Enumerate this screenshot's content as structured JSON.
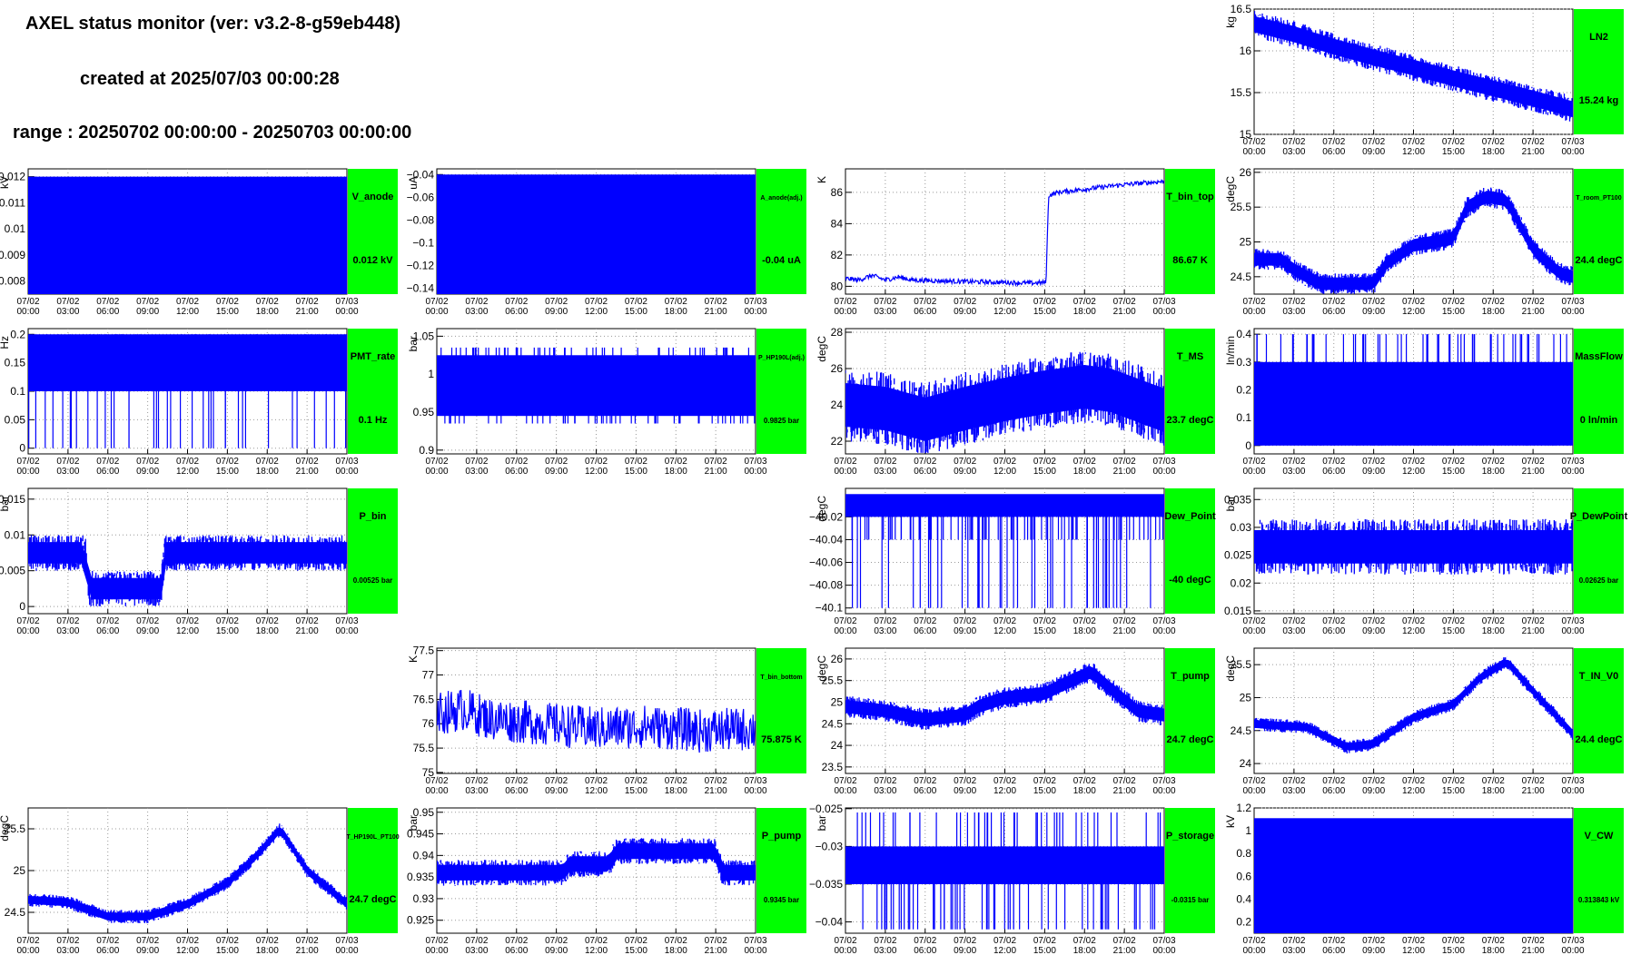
{
  "header": {
    "title": "AXEL status monitor (ver: v3.2-8-g59eb448)",
    "created": "created at 2025/07/03 00:00:28",
    "range": "range : 20250702 00:00:00 - 20250703 00:00:00"
  },
  "colors": {
    "line": "#0000ff",
    "label_box": "#00ff00",
    "grid": "#999999"
  },
  "x_tick_labels": [
    [
      "07/02",
      "00:00"
    ],
    [
      "07/02",
      "03:00"
    ],
    [
      "07/02",
      "06:00"
    ],
    [
      "07/02",
      "09:00"
    ],
    [
      "07/02",
      "12:00"
    ],
    [
      "07/02",
      "15:00"
    ],
    [
      "07/02",
      "18:00"
    ],
    [
      "07/02",
      "21:00"
    ],
    [
      "07/03",
      "00:00"
    ]
  ],
  "chart_data": [
    {
      "id": "ln2",
      "type": "line",
      "row": 0,
      "col": 3,
      "name": "LN2",
      "value_text": "15.24 kg",
      "unit": "kg",
      "ylim": [
        15,
        16.5
      ],
      "yticks": [
        15,
        15.5,
        16,
        16.5
      ],
      "ytick_labels": [
        "15",
        "15.5",
        "16",
        "16.5"
      ],
      "series": [
        {
          "name": "LN2",
          "pattern": "band",
          "points": [
            [
              0,
              16.32
            ],
            [
              3,
              16.2
            ],
            [
              6,
              16.05
            ],
            [
              9,
              15.92
            ],
            [
              12,
              15.8
            ],
            [
              15,
              15.67
            ],
            [
              18,
              15.55
            ],
            [
              21,
              15.43
            ],
            [
              24,
              15.3
            ]
          ],
          "spread": 0.16
        }
      ]
    },
    {
      "id": "v_anode",
      "type": "line",
      "row": 1,
      "col": 0,
      "name": "V_anode",
      "value_text": "0.012 kV",
      "unit": "kV",
      "ylim": [
        0.0075,
        0.0123
      ],
      "yticks": [
        0.008,
        0.009,
        0.01,
        0.011,
        0.012
      ],
      "ytick_labels": [
        "0.008",
        "0.009",
        "0.01",
        "0.011",
        "0.012"
      ],
      "series": [
        {
          "name": "V_anode",
          "pattern": "fill",
          "ylo": 0.0075,
          "yhi": 0.012
        }
      ]
    },
    {
      "id": "a_anode",
      "type": "line",
      "row": 1,
      "col": 1,
      "name": "A_anode(adj.)",
      "value_text": "-0.04 uA",
      "unit": "uA",
      "ylim": [
        -0.145,
        -0.035
      ],
      "yticks": [
        -0.14,
        -0.12,
        -0.1,
        -0.08,
        -0.06,
        -0.04
      ],
      "ytick_labels": [
        "−0.14",
        "−0.12",
        "−0.1",
        "−0.08",
        "−0.06",
        "−0.04"
      ],
      "series": [
        {
          "name": "A_anode(adj.)",
          "pattern": "fill",
          "ylo": -0.145,
          "yhi": -0.04
        }
      ]
    },
    {
      "id": "t_bin_top",
      "type": "line",
      "row": 1,
      "col": 2,
      "name": "T_bin_top",
      "value_text": "86.67 K",
      "unit": "K",
      "ylim": [
        79.5,
        87.5
      ],
      "yticks": [
        80,
        82,
        84,
        86
      ],
      "ytick_labels": [
        "80",
        "82",
        "84",
        "86"
      ],
      "series": [
        {
          "name": "T_bin_top",
          "pattern": "line",
          "points": [
            [
              0,
              80.5
            ],
            [
              1,
              80.4
            ],
            [
              2,
              80.7
            ],
            [
              3,
              80.4
            ],
            [
              4,
              80.6
            ],
            [
              5,
              80.4
            ],
            [
              9,
              80.3
            ],
            [
              12,
              80.25
            ],
            [
              14,
              80.2
            ],
            [
              15.1,
              80.25
            ],
            [
              15.3,
              85.8
            ],
            [
              16,
              86.0
            ],
            [
              18,
              86.2
            ],
            [
              21,
              86.5
            ],
            [
              24,
              86.7
            ]
          ],
          "noise": 0.15
        }
      ]
    },
    {
      "id": "t_room",
      "type": "line",
      "row": 1,
      "col": 3,
      "name": "T_room_PT100",
      "value_text": "24.4 degC",
      "unit": "degC",
      "ylim": [
        24.25,
        26.05
      ],
      "yticks": [
        24.5,
        25,
        25.5,
        26
      ],
      "ytick_labels": [
        "24.5",
        "25",
        "25.5",
        "26"
      ],
      "series": [
        {
          "name": "T_room_PT100",
          "pattern": "band",
          "points": [
            [
              0,
              24.75
            ],
            [
              2,
              24.75
            ],
            [
              3,
              24.6
            ],
            [
              5,
              24.4
            ],
            [
              9,
              24.4
            ],
            [
              10,
              24.7
            ],
            [
              12,
              24.95
            ],
            [
              15,
              25.05
            ],
            [
              16,
              25.5
            ],
            [
              17.5,
              25.65
            ],
            [
              19,
              25.6
            ],
            [
              21,
              24.9
            ],
            [
              23,
              24.55
            ],
            [
              24,
              24.5
            ]
          ],
          "spread": 0.15
        }
      ]
    },
    {
      "id": "pmt_rate",
      "type": "line",
      "row": 2,
      "col": 0,
      "name": "PMT_rate",
      "value_text": "0.1 Hz",
      "unit": "Hz",
      "ylim": [
        -0.01,
        0.21
      ],
      "yticks": [
        0,
        0.05,
        0.1,
        0.15,
        0.2
      ],
      "ytick_labels": [
        "0",
        "0.05",
        "0.1",
        "0.15",
        "0.2"
      ],
      "series": [
        {
          "name": "PMT_rate",
          "pattern": "discrete",
          "levels": [
            0,
            0.1,
            0.2
          ],
          "base": 0.1,
          "band": [
            0.1,
            0.2
          ]
        }
      ]
    },
    {
      "id": "p_hp",
      "type": "line",
      "row": 2,
      "col": 1,
      "name": "P_HP190L(adj.)",
      "value_text": "0.9825 bar",
      "unit": "bar",
      "ylim": [
        0.895,
        1.06
      ],
      "yticks": [
        0.9,
        0.95,
        1,
        1.05
      ],
      "ytick_labels": [
        "0.9",
        "0.95",
        "1",
        "1.05"
      ],
      "series": [
        {
          "name": "P_HP190L(adj.)",
          "pattern": "discrete",
          "levels": [
            0.935,
            1.035
          ],
          "base": 0.985,
          "band": [
            0.945,
            1.025
          ]
        }
      ]
    },
    {
      "id": "t_ms",
      "type": "line",
      "row": 2,
      "col": 2,
      "name": "T_MS",
      "value_text": "23.7 degC",
      "unit": "degC",
      "ylim": [
        21.3,
        28.2
      ],
      "yticks": [
        22,
        24,
        26,
        28
      ],
      "ytick_labels": [
        "22",
        "24",
        "26",
        "28"
      ],
      "series": [
        {
          "name": "T_MS",
          "pattern": "band",
          "points": [
            [
              0,
              24.0
            ],
            [
              3,
              23.8
            ],
            [
              6,
              23.2
            ],
            [
              9,
              23.8
            ],
            [
              12,
              24.3
            ],
            [
              15,
              24.7
            ],
            [
              18,
              25.0
            ],
            [
              20,
              24.8
            ],
            [
              24,
              23.7
            ]
          ],
          "spread": 2.0
        }
      ]
    },
    {
      "id": "massflow",
      "type": "line",
      "row": 2,
      "col": 3,
      "name": "MassFlow",
      "value_text": "0 ln/min",
      "unit": "ln/min",
      "ylim": [
        -0.03,
        0.42
      ],
      "yticks": [
        0,
        0.1,
        0.2,
        0.3,
        0.4
      ],
      "ytick_labels": [
        "0",
        "0.1",
        "0.2",
        "0.3",
        "0.4"
      ],
      "series": [
        {
          "name": "MassFlow",
          "pattern": "discrete",
          "levels": [
            0,
            0.4
          ],
          "base": 0.15,
          "band": [
            0,
            0.3
          ]
        }
      ]
    },
    {
      "id": "p_bin",
      "type": "line",
      "row": 3,
      "col": 0,
      "name": "P_bin",
      "value_text": "0.00525 bar",
      "unit": "bar",
      "ylim": [
        -0.001,
        0.0165
      ],
      "yticks": [
        0,
        0.005,
        0.01,
        0.015
      ],
      "ytick_labels": [
        "0",
        "0.005",
        "0.01",
        "0.015"
      ],
      "series": [
        {
          "name": "P_bin",
          "pattern": "band",
          "points": [
            [
              0,
              0.0075
            ],
            [
              4.3,
              0.0075
            ],
            [
              4.5,
              0.0025
            ],
            [
              10,
              0.0025
            ],
            [
              10.3,
              0.0075
            ],
            [
              24,
              0.0075
            ]
          ],
          "spread": 0.0025
        }
      ]
    },
    {
      "id": "dew_point",
      "type": "line",
      "row": 3,
      "col": 2,
      "name": "Dew_Point",
      "value_text": "-40 degC",
      "unit": "degC",
      "ylim": [
        -40.105,
        -39.995
      ],
      "yticks": [
        -40.1,
        -40.08,
        -40.06,
        -40.04,
        -40.02
      ],
      "ytick_labels": [
        "−40.1",
        "−40.08",
        "−40.06",
        "−40.04",
        "−40.02"
      ],
      "series": [
        {
          "name": "Dew_Point",
          "pattern": "discrete",
          "levels": [
            -40.04,
            -40.1
          ],
          "base": -40.01,
          "band": [
            -40.02,
            -40.0
          ]
        }
      ]
    },
    {
      "id": "p_dewpoint",
      "type": "line",
      "row": 3,
      "col": 3,
      "name": "P_DewPoint",
      "value_text": "0.02625 bar",
      "unit": "bar",
      "ylim": [
        0.0145,
        0.037
      ],
      "yticks": [
        0.015,
        0.02,
        0.025,
        0.03,
        0.035
      ],
      "ytick_labels": [
        "0.015",
        "0.02",
        "0.025",
        "0.03",
        "0.035"
      ],
      "series": [
        {
          "name": "P_DewPoint",
          "pattern": "band",
          "points": [
            [
              0,
              0.0265
            ],
            [
              24,
              0.0265
            ]
          ],
          "spread": 0.005
        }
      ]
    },
    {
      "id": "t_bin_bottom",
      "type": "line",
      "row": 4,
      "col": 1,
      "name": "T_bin_bottom",
      "value_text": "75.875 K",
      "unit": "K",
      "ylim": [
        74.98,
        77.55
      ],
      "yticks": [
        75,
        75.5,
        76,
        76.5,
        77,
        77.5
      ],
      "ytick_labels": [
        "75",
        "75.5",
        "76",
        "76.5",
        "77",
        "77.5"
      ],
      "series": [
        {
          "name": "T_bin_bottom",
          "pattern": "line",
          "points": [
            [
              0,
              76.2
            ],
            [
              2,
              76.3
            ],
            [
              4,
              76.1
            ],
            [
              8,
              76.0
            ],
            [
              12,
              75.9
            ],
            [
              16,
              75.95
            ],
            [
              20,
              75.85
            ],
            [
              24,
              75.9
            ]
          ],
          "noise": 0.45
        }
      ]
    },
    {
      "id": "t_pump",
      "type": "line",
      "row": 4,
      "col": 2,
      "name": "T_pump",
      "value_text": "24.7 degC",
      "unit": "degC",
      "ylim": [
        23.35,
        26.25
      ],
      "yticks": [
        23.5,
        24,
        24.5,
        25,
        25.5,
        26
      ],
      "ytick_labels": [
        "23.5",
        "24",
        "24.5",
        "25",
        "25.5",
        "26"
      ],
      "series": [
        {
          "name": "T_pump",
          "pattern": "band",
          "points": [
            [
              0,
              24.9
            ],
            [
              3,
              24.8
            ],
            [
              6,
              24.6
            ],
            [
              9,
              24.7
            ],
            [
              10,
              24.9
            ],
            [
              12,
              25.1
            ],
            [
              15,
              25.2
            ],
            [
              17,
              25.5
            ],
            [
              18.5,
              25.7
            ],
            [
              20,
              25.3
            ],
            [
              22,
              24.8
            ],
            [
              24,
              24.7
            ]
          ],
          "spread": 0.25
        }
      ]
    },
    {
      "id": "t_in_v0",
      "type": "line",
      "row": 4,
      "col": 3,
      "name": "T_IN_V0",
      "value_text": "24.4 degC",
      "unit": "degC",
      "ylim": [
        23.85,
        25.75
      ],
      "yticks": [
        24,
        24.5,
        25,
        25.5
      ],
      "ytick_labels": [
        "24",
        "24.5",
        "25",
        "25.5"
      ],
      "series": [
        {
          "name": "T_IN_V0",
          "pattern": "band",
          "points": [
            [
              0,
              24.6
            ],
            [
              4,
              24.55
            ],
            [
              7,
              24.25
            ],
            [
              9,
              24.3
            ],
            [
              12,
              24.7
            ],
            [
              15,
              24.9
            ],
            [
              17,
              25.3
            ],
            [
              19,
              25.55
            ],
            [
              21,
              25.1
            ],
            [
              24,
              24.45
            ]
          ],
          "spread": 0.1
        }
      ]
    },
    {
      "id": "t_hp_pt100",
      "type": "line",
      "row": 5,
      "col": 0,
      "name": "T_HP190L_PT100",
      "value_text": "24.7 degC",
      "unit": "degC",
      "ylim": [
        24.25,
        25.75
      ],
      "yticks": [
        24.5,
        25,
        25.5
      ],
      "ytick_labels": [
        "24.5",
        "25",
        "25.5"
      ],
      "series": [
        {
          "name": "T_HP190L_PT100",
          "pattern": "band",
          "points": [
            [
              0,
              24.65
            ],
            [
              3,
              24.62
            ],
            [
              6,
              24.45
            ],
            [
              9,
              24.45
            ],
            [
              12,
              24.6
            ],
            [
              15,
              24.85
            ],
            [
              17,
              25.15
            ],
            [
              19,
              25.5
            ],
            [
              21,
              25.0
            ],
            [
              24,
              24.6
            ]
          ],
          "spread": 0.08
        }
      ]
    },
    {
      "id": "p_pump",
      "type": "line",
      "row": 5,
      "col": 1,
      "name": "P_pump",
      "value_text": "0.9345 bar",
      "unit": "bar",
      "ylim": [
        0.922,
        0.951
      ],
      "yticks": [
        0.925,
        0.93,
        0.935,
        0.94,
        0.945,
        0.95
      ],
      "ytick_labels": [
        "0.925",
        "0.93",
        "0.935",
        "0.94",
        "0.945",
        "0.95"
      ],
      "series": [
        {
          "name": "P_pump",
          "pattern": "band",
          "points": [
            [
              0,
              0.936
            ],
            [
              9.5,
              0.936
            ],
            [
              10,
              0.938
            ],
            [
              13,
              0.938
            ],
            [
              13.5,
              0.941
            ],
            [
              21,
              0.941
            ],
            [
              21.5,
              0.936
            ],
            [
              24,
              0.936
            ]
          ],
          "spread": 0.003
        }
      ]
    },
    {
      "id": "p_storage",
      "type": "line",
      "row": 5,
      "col": 2,
      "name": "P_storage",
      "value_text": "-0.0315 bar",
      "unit": "bar",
      "ylim": [
        -0.0415,
        -0.0249
      ],
      "yticks": [
        -0.04,
        -0.035,
        -0.03,
        -0.025
      ],
      "ytick_labels": [
        "−0.04",
        "−0.035",
        "−0.03",
        "−0.025"
      ],
      "series": [
        {
          "name": "P_storage",
          "pattern": "discrete",
          "levels": [
            -0.041,
            -0.0255
          ],
          "base": -0.0325,
          "band": [
            -0.035,
            -0.03
          ]
        }
      ]
    },
    {
      "id": "v_cw",
      "type": "line",
      "row": 5,
      "col": 3,
      "name": "V_CW",
      "value_text": "0.313843 kV",
      "unit": "kV",
      "ylim": [
        0.1,
        1.2
      ],
      "yticks": [
        0.2,
        0.4,
        0.6,
        0.8,
        1,
        1.2
      ],
      "ytick_labels": [
        "0.2",
        "0.4",
        "0.6",
        "0.8",
        "1",
        "1.2"
      ],
      "series": [
        {
          "name": "V_CW",
          "pattern": "fill",
          "ylo": 0.1,
          "yhi": 1.11
        }
      ]
    }
  ]
}
